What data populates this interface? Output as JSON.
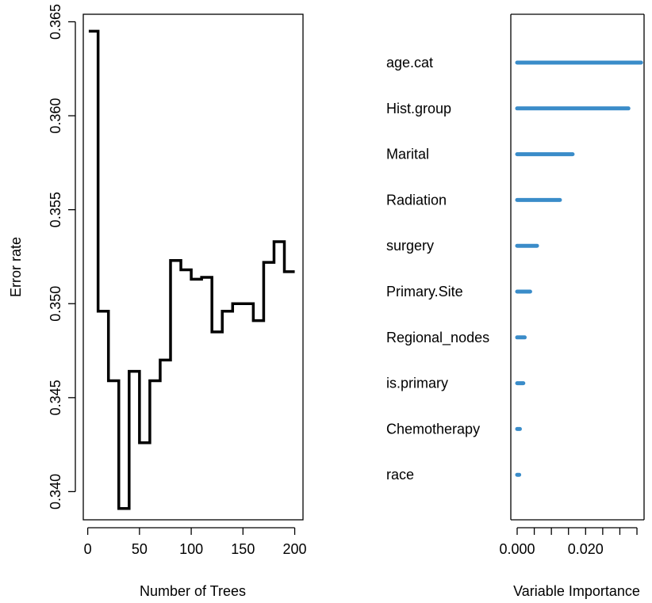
{
  "chart_data": [
    {
      "type": "line",
      "xlabel": "Number of Trees",
      "ylabel": "Error rate",
      "xlim": [
        0,
        200
      ],
      "ylim": [
        0.3385,
        0.3654
      ],
      "xticks": [
        0,
        50,
        100,
        150,
        200
      ],
      "xtick_labels": [
        "0",
        "50",
        "100",
        "150",
        "200"
      ],
      "yticks": [
        0.34,
        0.345,
        0.35,
        0.355,
        0.36,
        0.365
      ],
      "ytick_labels": [
        "0.340",
        "0.345",
        "0.350",
        "0.355",
        "0.360",
        "0.365"
      ],
      "step": true,
      "line_color": "#000000",
      "series": [
        {
          "x": [
            1,
            10,
            20,
            30,
            40,
            50,
            60,
            70,
            80,
            90,
            100,
            110,
            120,
            130,
            140,
            150,
            160,
            170,
            180,
            190,
            200
          ],
          "y": [
            0.3645,
            0.3496,
            0.3459,
            0.3391,
            0.3464,
            0.3426,
            0.3459,
            0.347,
            0.3523,
            0.3518,
            0.3513,
            0.3514,
            0.3485,
            0.3496,
            0.35,
            0.35,
            0.3491,
            0.3522,
            0.3533,
            0.3517,
            0.3517
          ]
        }
      ]
    },
    {
      "type": "bar",
      "orientation": "horizontal",
      "xlabel": "Variable Importance",
      "xlim": [
        0,
        0.0365
      ],
      "xticks": [
        0,
        0.02
      ],
      "xtick_labels": [
        "0.000",
        "0.020"
      ],
      "minor_xticks": [
        0.005,
        0.01,
        0.015,
        0.025,
        0.03,
        0.035
      ],
      "bar_color": "#3a8cc9",
      "categories": [
        "age.cat",
        "Hist.group",
        "Marital",
        "Radiation",
        "surgery",
        "Primary.Site",
        "Regional_nodes",
        "is.primary",
        "Chemotherapy",
        "race"
      ],
      "values": [
        0.0362,
        0.0325,
        0.0162,
        0.0125,
        0.0058,
        0.0038,
        0.0022,
        0.0018,
        0.0008,
        0.0006
      ]
    }
  ]
}
